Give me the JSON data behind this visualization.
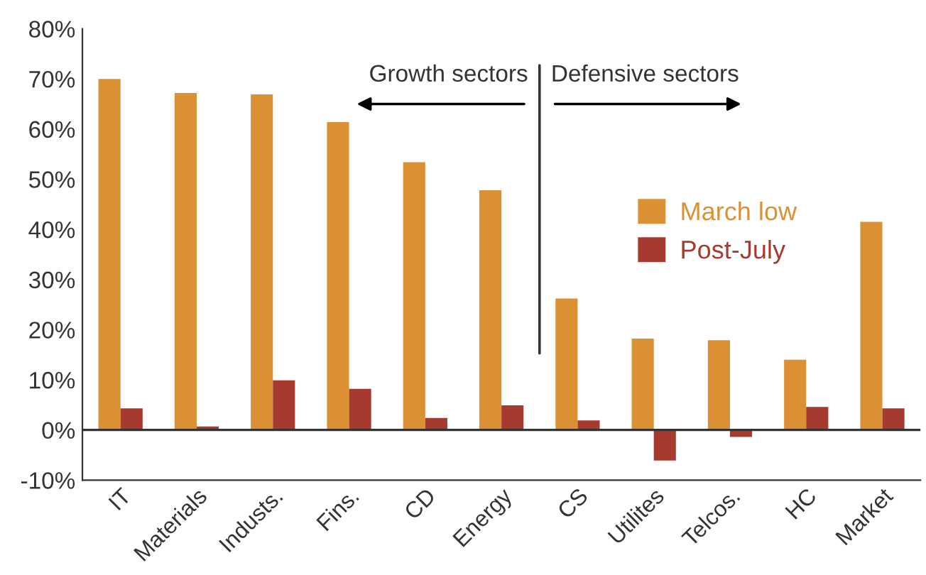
{
  "chart_data": {
    "type": "bar",
    "categories": [
      "IT",
      "Materials",
      "Industs.",
      "Fins.",
      "CD",
      "Energy",
      "CS",
      "Utilites",
      "Telcos.",
      "HC",
      "Market"
    ],
    "series": [
      {
        "name": "March low",
        "color": "#db9034",
        "values": [
          70,
          67.2,
          66.9,
          61.4,
          53.4,
          47.8,
          26.2,
          18.2,
          17.9,
          14.0,
          41.5
        ]
      },
      {
        "name": "Post-July",
        "color": "#a63a2e",
        "values": [
          4.3,
          0.7,
          9.9,
          8.2,
          2.4,
          4.9,
          1.9,
          -6.1,
          -1.4,
          4.6,
          4.3
        ]
      }
    ],
    "ylim": [
      -10,
      80
    ],
    "yticks": [
      {
        "value": -10,
        "label": "-10%"
      },
      {
        "value": 0,
        "label": "0%"
      },
      {
        "value": 10,
        "label": "10%"
      },
      {
        "value": 20,
        "label": "20%"
      },
      {
        "value": 30,
        "label": "30%"
      },
      {
        "value": 40,
        "label": "40%"
      },
      {
        "value": 50,
        "label": "50%"
      },
      {
        "value": 60,
        "label": "60%"
      },
      {
        "value": 70,
        "label": "70%"
      },
      {
        "value": 80,
        "label": "80%"
      }
    ],
    "ref_lines": [
      {
        "axis": "y",
        "value": 0,
        "color": "#333333"
      }
    ],
    "annotations": [
      "Growth sectors",
      "Defensive sectors"
    ],
    "legend": "center right",
    "grid": false
  }
}
